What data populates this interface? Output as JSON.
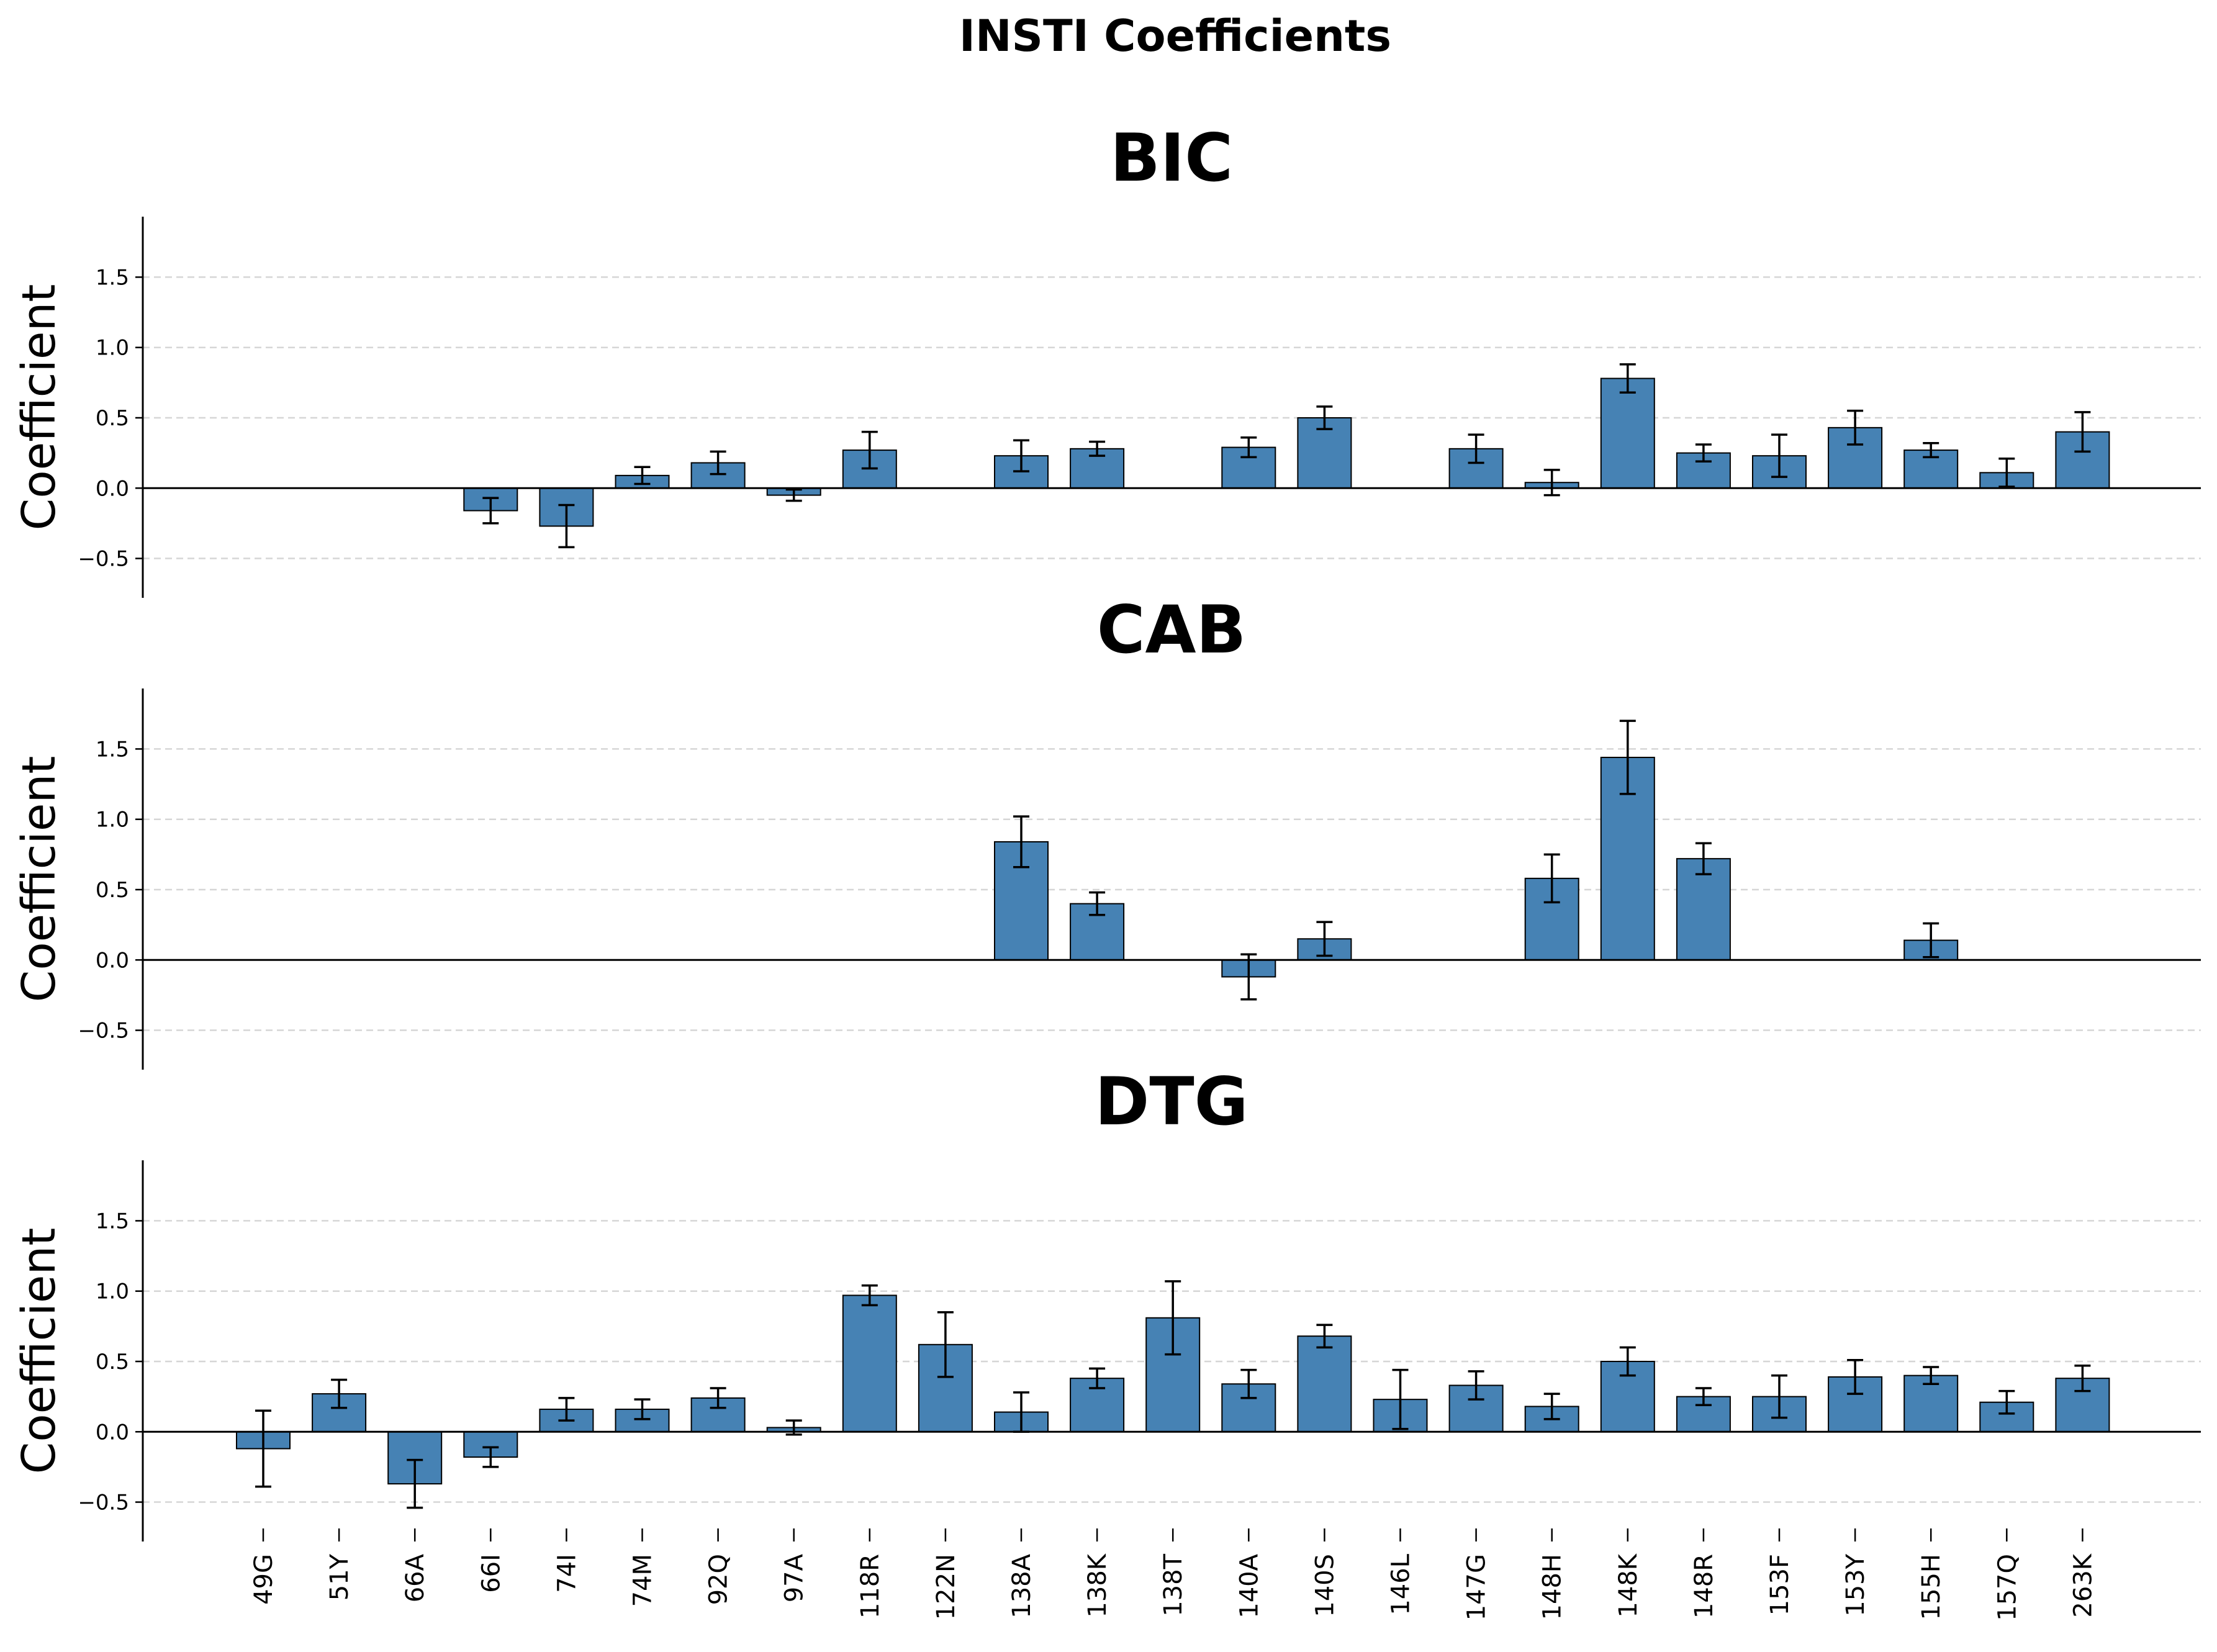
{
  "chart_data": {
    "type": "bar",
    "title": "INSTI Coefficients",
    "categories": [
      "49G",
      "51Y",
      "66A",
      "66I",
      "74I",
      "74M",
      "92Q",
      "97A",
      "118R",
      "122N",
      "138A",
      "138K",
      "138T",
      "140A",
      "140S",
      "146L",
      "147G",
      "148H",
      "148K",
      "148R",
      "153F",
      "153Y",
      "155H",
      "157Q",
      "263K"
    ],
    "ylabel": "Coefficient",
    "ylim": [
      -0.78,
      1.93
    ],
    "yticks": [
      "−0.5",
      "0.0",
      "0.5",
      "1.0",
      "1.5"
    ],
    "ytick_values": [
      -0.5,
      0.0,
      0.5,
      1.0,
      1.5
    ],
    "grid": "horizontal-dashed",
    "bar_color": "#4682b4",
    "edge_color": "#000000",
    "panels": [
      {
        "name": "BIC",
        "values": [
          0,
          0,
          0,
          -0.16,
          -0.27,
          0.09,
          0.18,
          -0.05,
          0.27,
          0,
          0.23,
          0.28,
          0,
          0.29,
          0.5,
          0,
          0.28,
          0.04,
          0.78,
          0.25,
          0.23,
          0.43,
          0.27,
          0.11,
          0.4
        ],
        "errors": [
          0,
          0,
          0,
          0.09,
          0.15,
          0.06,
          0.08,
          0.04,
          0.13,
          0,
          0.11,
          0.05,
          0,
          0.07,
          0.08,
          0,
          0.1,
          0.09,
          0.1,
          0.06,
          0.15,
          0.12,
          0.05,
          0.1,
          0.14
        ]
      },
      {
        "name": "CAB",
        "values": [
          0,
          0,
          0,
          0,
          0,
          0,
          0,
          0,
          0,
          0,
          0.84,
          0.4,
          0,
          -0.12,
          0.15,
          0,
          0,
          0.58,
          1.44,
          0.72,
          0,
          0,
          0.14,
          0,
          0
        ],
        "errors": [
          0,
          0,
          0,
          0,
          0,
          0,
          0,
          0,
          0,
          0,
          0.18,
          0.08,
          0,
          0.16,
          0.12,
          0,
          0,
          0.17,
          0.26,
          0.11,
          0,
          0,
          0.12,
          0,
          0
        ]
      },
      {
        "name": "DTG",
        "values": [
          -0.12,
          0.27,
          -0.37,
          -0.18,
          0.16,
          0.16,
          0.24,
          0.03,
          0.97,
          0.62,
          0.14,
          0.38,
          0.81,
          0.34,
          0.68,
          0.23,
          0.33,
          0.18,
          0.5,
          0.25,
          0.25,
          0.39,
          0.4,
          0.21,
          0.38
        ],
        "errors": [
          0.27,
          0.1,
          0.17,
          0.07,
          0.08,
          0.07,
          0.07,
          0.05,
          0.07,
          0.23,
          0.14,
          0.07,
          0.26,
          0.1,
          0.08,
          0.21,
          0.1,
          0.09,
          0.1,
          0.06,
          0.15,
          0.12,
          0.06,
          0.08,
          0.09
        ]
      }
    ]
  }
}
